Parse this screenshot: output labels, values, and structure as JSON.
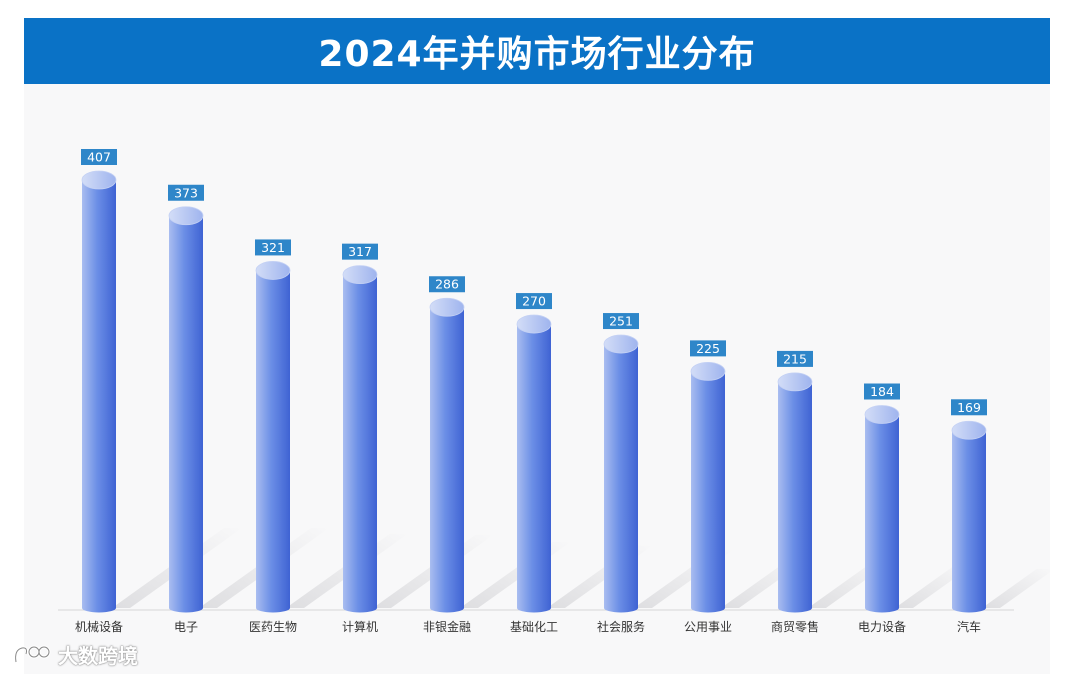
{
  "title": "2024年并购市场行业分布",
  "watermark": "大数跨境",
  "chart_data": {
    "type": "bar",
    "title": "2024年并购市场行业分布",
    "categories": [
      "机械设备",
      "电子",
      "医药生物",
      "计算机",
      "非银金融",
      "基础化工",
      "社会服务",
      "公用事业",
      "商贸零售",
      "电力设备",
      "汽车"
    ],
    "values": [
      407,
      373,
      321,
      317,
      286,
      270,
      251,
      225,
      215,
      184,
      169
    ],
    "xlabel": "",
    "ylabel": "",
    "ylim": [
      0,
      407
    ],
    "grid": false,
    "legend": "none",
    "colors": {
      "bar_light": "#a9bdf0",
      "bar_mid": "#6b8ee6",
      "bar_dark": "#3f63d3",
      "top_light": "#d3ddf7",
      "label_bg": "#2e86c9",
      "label_text": "#ffffff"
    }
  }
}
